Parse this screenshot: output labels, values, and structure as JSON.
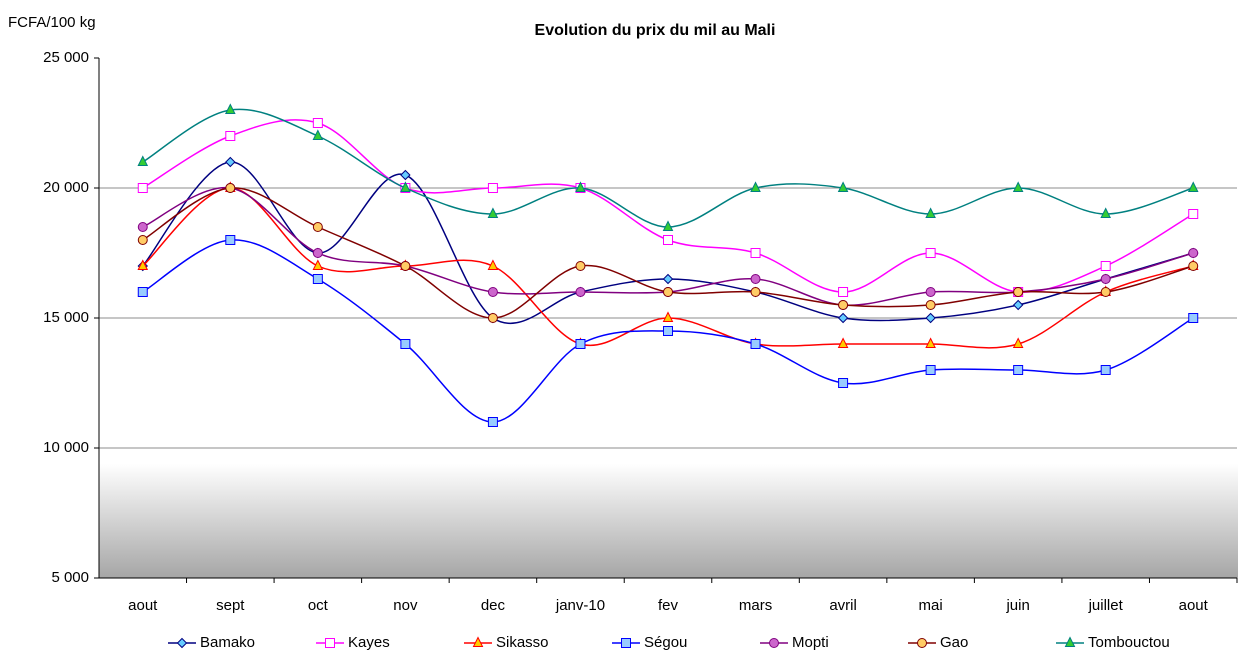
{
  "chart_data": {
    "type": "line",
    "title": "Evolution du prix du mil au Mali",
    "y_label": "FCFA/100 kg",
    "categories": [
      "aout",
      "sept",
      "oct",
      "nov",
      "dec",
      "janv-10",
      "fev",
      "mars",
      "avril",
      "mai",
      "juin",
      "juillet",
      "aout"
    ],
    "ylim": [
      5000,
      25000
    ],
    "yticks": [
      {
        "value": 5000,
        "label": "5 000"
      },
      {
        "value": 10000,
        "label": "10 000"
      },
      {
        "value": 15000,
        "label": "15 000"
      },
      {
        "value": 20000,
        "label": "20 000"
      },
      {
        "value": 25000,
        "label": "25 000"
      }
    ],
    "grid": true,
    "legend": "bottom",
    "smooth": true,
    "series": [
      {
        "name": "Bamako",
        "color": "#000080",
        "marker": "diamond",
        "marker_fill": "#66ccff",
        "values": [
          17000,
          21000,
          17500,
          20500,
          15000,
          16000,
          16500,
          16000,
          15000,
          15000,
          15500,
          16500,
          17500
        ]
      },
      {
        "name": "Kayes",
        "color": "#ff00ff",
        "marker": "square",
        "marker_fill": "#ffffff",
        "values": [
          20000,
          22000,
          22500,
          20000,
          20000,
          20000,
          18000,
          17500,
          16000,
          17500,
          16000,
          17000,
          19000
        ]
      },
      {
        "name": "Sikasso",
        "color": "#ff0000",
        "marker": "triangle",
        "marker_fill": "#ffcc00",
        "values": [
          17000,
          20000,
          17000,
          17000,
          17000,
          14000,
          15000,
          14000,
          14000,
          14000,
          14000,
          16000,
          17000
        ]
      },
      {
        "name": "Ségou",
        "color": "#0000ff",
        "marker": "square",
        "marker_fill": "#99ccff",
        "values": [
          16000,
          18000,
          16500,
          14000,
          11000,
          14000,
          14500,
          14000,
          12500,
          13000,
          13000,
          13000,
          15000
        ]
      },
      {
        "name": "Mopti",
        "color": "#800080",
        "marker": "circle",
        "marker_fill": "#cc66cc",
        "values": [
          18500,
          20000,
          17500,
          17000,
          16000,
          16000,
          16000,
          16500,
          15500,
          16000,
          16000,
          16500,
          17500
        ]
      },
      {
        "name": "Gao",
        "color": "#800000",
        "marker": "circle",
        "marker_fill": "#ffcc66",
        "values": [
          18000,
          20000,
          18500,
          17000,
          15000,
          17000,
          16000,
          16000,
          15500,
          15500,
          16000,
          16000,
          17000
        ]
      },
      {
        "name": "Tombouctou",
        "color": "#008080",
        "marker": "triangle",
        "marker_fill": "#33cc33",
        "values": [
          21000,
          23000,
          22000,
          20000,
          19000,
          20000,
          18500,
          20000,
          20000,
          19000,
          20000,
          19000,
          20000
        ]
      }
    ]
  }
}
